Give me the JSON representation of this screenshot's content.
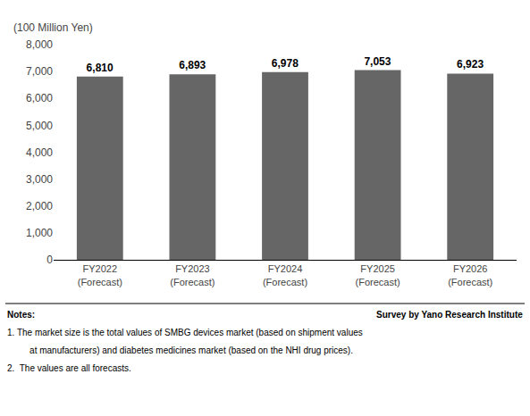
{
  "chart_data": {
    "type": "bar",
    "y_label": "(100 Million Yen)",
    "categories": [
      "FY2022\n(Forecast)",
      "FY2023\n(Forecast)",
      "FY2024\n(Forecast)",
      "FY2025\n(Forecast)",
      "FY2026\n(Forecast)"
    ],
    "values": [
      6810,
      6893,
      6978,
      7053,
      6923
    ],
    "value_labels": [
      "6,810",
      "6,893",
      "6,978",
      "7,053",
      "6,923"
    ],
    "data_labels": true,
    "color": "#666666",
    "ylim": [
      0,
      8000
    ],
    "yticks": [
      0,
      {
        "value": 1000,
        "label": "1,000"
      },
      {
        "value": 2000,
        "label": "2,000"
      },
      {
        "value": 3000,
        "label": "3,000"
      },
      {
        "value": 4000,
        "label": "4,000"
      },
      {
        "value": 5000,
        "label": "5,000"
      },
      {
        "value": 6000,
        "label": "6,000"
      },
      {
        "value": 7000,
        "label": "7,000"
      },
      {
        "value": 8000,
        "label": "8,000"
      }
    ],
    "grid": false,
    "annotations": [
      "Notes:",
      "Survey by Yano Research Institute",
      "1. The market size is the total values of SMBG devices market (based on shipment values",
      "    at manufacturers) and diabetes medicines market (based on the NHI drug prices).",
      "2.  The values are all forecasts."
    ]
  }
}
